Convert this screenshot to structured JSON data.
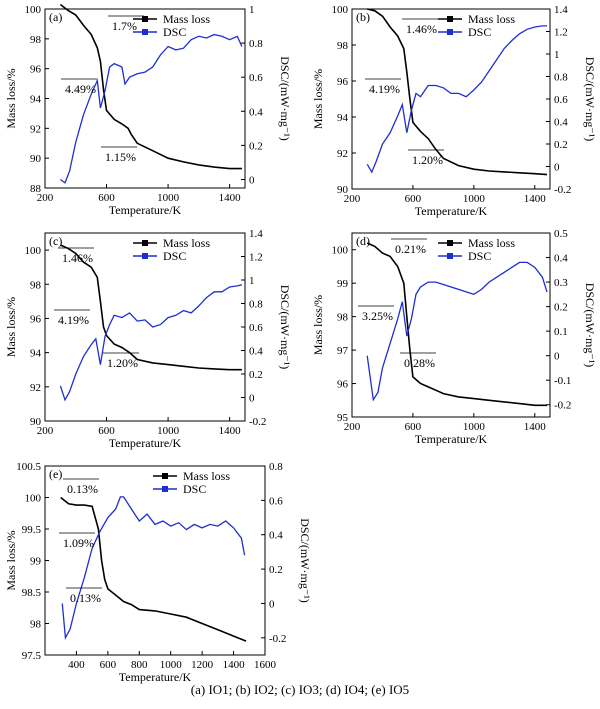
{
  "caption": "(a)  IO1;  (b)  IO2;  (c) IO3;  (d) IO4;  (e) IO5",
  "colors": {
    "mass": "#000000",
    "dsc": "#1f2fcf"
  },
  "chart_data": [
    {
      "panel": "(a)",
      "type": "line",
      "xlabel": "Temperature/K",
      "ylabel": "Mass loss/%",
      "y2label": "DSC/(mW·mg⁻¹)",
      "xlim": [
        200,
        1500
      ],
      "ylim": [
        88,
        100
      ],
      "y2lim": [
        -0.05,
        1.0
      ],
      "xticks": [
        200,
        600,
        1000,
        1400
      ],
      "yticks": [
        88,
        90,
        92,
        94,
        96,
        98,
        100
      ],
      "y2ticks": [
        0,
        0.2,
        0.4,
        0.6,
        0.8,
        1.0
      ],
      "legend": [
        "Mass loss",
        "DSC"
      ],
      "legend_position": "top-right",
      "annotations": [
        "1.7%",
        "4.49%",
        "1.15%"
      ],
      "series": [
        {
          "name": "Mass loss",
          "axis": "left",
          "x": [
            300,
            350,
            400,
            450,
            500,
            540,
            560,
            580,
            600,
            650,
            700,
            740,
            760,
            800,
            900,
            1000,
            1100,
            1200,
            1300,
            1400,
            1480
          ],
          "y": [
            100.3,
            99.9,
            99.6,
            98.9,
            98.3,
            97.4,
            96.5,
            94.6,
            93.2,
            92.6,
            92.3,
            92.0,
            91.6,
            91.0,
            90.5,
            90.0,
            89.75,
            89.55,
            89.4,
            89.3,
            89.3
          ]
        },
        {
          "name": "DSC",
          "axis": "right",
          "x": [
            300,
            330,
            360,
            400,
            450,
            500,
            540,
            560,
            590,
            620,
            650,
            700,
            720,
            750,
            800,
            850,
            900,
            950,
            1000,
            1050,
            1100,
            1150,
            1200,
            1250,
            1300,
            1350,
            1400,
            1450,
            1480
          ],
          "y": [
            0.0,
            -0.02,
            0.05,
            0.22,
            0.38,
            0.5,
            0.58,
            0.42,
            0.52,
            0.66,
            0.68,
            0.66,
            0.56,
            0.6,
            0.62,
            0.63,
            0.66,
            0.73,
            0.78,
            0.76,
            0.77,
            0.82,
            0.84,
            0.83,
            0.85,
            0.84,
            0.82,
            0.84,
            0.78
          ]
        }
      ]
    },
    {
      "panel": "(b)",
      "type": "line",
      "xlabel": "Temperature/K",
      "ylabel": "Mass loss/%",
      "y2label": "DSC/(mW·mg⁻¹)",
      "xlim": [
        200,
        1500
      ],
      "ylim": [
        90,
        100
      ],
      "y2lim": [
        -0.2,
        1.4
      ],
      "xticks": [
        200,
        600,
        1000,
        1400
      ],
      "yticks": [
        90,
        92,
        94,
        96,
        98,
        100
      ],
      "y2ticks": [
        -0.2,
        0,
        0.2,
        0.4,
        0.6,
        0.8,
        1.0,
        1.2,
        1.4
      ],
      "legend": [
        "Mass loss",
        "DSC"
      ],
      "legend_position": "top-right",
      "annotations": [
        "1.46%",
        "4.19%",
        "1.20%"
      ],
      "series": [
        {
          "name": "Mass loss",
          "axis": "left",
          "x": [
            300,
            350,
            400,
            450,
            500,
            540,
            560,
            580,
            600,
            650,
            700,
            750,
            800,
            900,
            1000,
            1100,
            1200,
            1300,
            1400,
            1480
          ],
          "y": [
            100.0,
            99.9,
            99.6,
            99.0,
            98.5,
            97.8,
            96.5,
            95.0,
            93.7,
            93.2,
            92.8,
            92.2,
            91.7,
            91.3,
            91.1,
            91.0,
            90.95,
            90.9,
            90.85,
            90.8
          ]
        },
        {
          "name": "DSC",
          "axis": "right",
          "x": [
            300,
            330,
            360,
            400,
            450,
            500,
            530,
            560,
            590,
            620,
            650,
            700,
            750,
            800,
            850,
            900,
            950,
            1000,
            1050,
            1100,
            1150,
            1200,
            1250,
            1300,
            1350,
            1400,
            1450,
            1480
          ],
          "y": [
            0.02,
            -0.05,
            0.05,
            0.2,
            0.3,
            0.45,
            0.55,
            0.3,
            0.5,
            0.65,
            0.62,
            0.72,
            0.72,
            0.7,
            0.65,
            0.65,
            0.62,
            0.68,
            0.75,
            0.85,
            0.95,
            1.05,
            1.12,
            1.18,
            1.22,
            1.24,
            1.25,
            1.25
          ]
        }
      ]
    },
    {
      "panel": "(c)",
      "type": "line",
      "xlabel": "Temperature/K",
      "ylabel": "Mass loss/%",
      "y2label": "DSC/(mW·mg⁻¹)",
      "xlim": [
        200,
        1500
      ],
      "ylim": [
        90,
        101
      ],
      "y2lim": [
        -0.2,
        1.4
      ],
      "xticks": [
        200,
        600,
        1000,
        1400
      ],
      "yticks": [
        90,
        92,
        94,
        96,
        98,
        100
      ],
      "y2ticks": [
        -0.2,
        0,
        0.2,
        0.4,
        0.6,
        0.8,
        1.0,
        1.2,
        1.4
      ],
      "legend": [
        "Mass loss",
        "DSC"
      ],
      "legend_position": "top-right",
      "annotations": [
        "1.46%",
        "4.19%",
        "1.20%"
      ],
      "series": [
        {
          "name": "Mass loss",
          "axis": "left",
          "x": [
            300,
            350,
            400,
            450,
            500,
            540,
            560,
            580,
            600,
            650,
            700,
            750,
            800,
            900,
            1000,
            1100,
            1200,
            1300,
            1400,
            1480
          ],
          "y": [
            100.3,
            100.1,
            99.8,
            99.3,
            99.0,
            98.4,
            97.0,
            95.5,
            95.0,
            94.5,
            94.3,
            94.0,
            93.6,
            93.4,
            93.3,
            93.2,
            93.1,
            93.05,
            93.0,
            93.0
          ]
        },
        {
          "name": "DSC",
          "axis": "right",
          "x": [
            300,
            330,
            360,
            400,
            450,
            500,
            530,
            560,
            590,
            620,
            650,
            700,
            750,
            800,
            850,
            900,
            950,
            1000,
            1050,
            1100,
            1150,
            1200,
            1250,
            1300,
            1350,
            1400,
            1450,
            1480
          ],
          "y": [
            0.1,
            -0.02,
            0.05,
            0.2,
            0.35,
            0.45,
            0.5,
            0.28,
            0.52,
            0.62,
            0.7,
            0.68,
            0.72,
            0.65,
            0.66,
            0.6,
            0.62,
            0.68,
            0.7,
            0.74,
            0.72,
            0.78,
            0.85,
            0.9,
            0.9,
            0.94,
            0.95,
            0.96
          ]
        }
      ]
    },
    {
      "panel": "(d)",
      "type": "line",
      "xlabel": "Temperature/K",
      "ylabel": "Mass loss/%",
      "y2label": "DSC/(mW·mg⁻¹)",
      "xlim": [
        200,
        1500
      ],
      "ylim": [
        95,
        100.5
      ],
      "y2lim": [
        -0.25,
        0.5
      ],
      "xticks": [
        200,
        600,
        1000,
        1400
      ],
      "yticks": [
        95,
        96,
        97,
        98,
        99,
        100
      ],
      "y2ticks": [
        -0.2,
        -0.1,
        0,
        0.1,
        0.2,
        0.3,
        0.4,
        0.5
      ],
      "legend": [
        "Mass loss",
        "DSC"
      ],
      "legend_position": "top-right",
      "annotations": [
        "0.21%",
        "3.25%",
        "0.28%"
      ],
      "series": [
        {
          "name": "Mass loss",
          "axis": "left",
          "x": [
            300,
            350,
            400,
            450,
            500,
            540,
            560,
            580,
            600,
            650,
            700,
            750,
            800,
            900,
            1000,
            1100,
            1200,
            1300,
            1400,
            1480
          ],
          "y": [
            100.2,
            100.1,
            99.9,
            99.8,
            99.5,
            99.0,
            98.0,
            97.0,
            96.2,
            96.0,
            95.9,
            95.8,
            95.7,
            95.6,
            95.55,
            95.5,
            95.45,
            95.4,
            95.35,
            95.35
          ]
        },
        {
          "name": "DSC",
          "axis": "right",
          "x": [
            300,
            340,
            370,
            400,
            450,
            500,
            530,
            560,
            590,
            620,
            650,
            700,
            750,
            800,
            850,
            900,
            950,
            1000,
            1050,
            1100,
            1150,
            1200,
            1250,
            1300,
            1350,
            1400,
            1450,
            1480
          ],
          "y": [
            0.0,
            -0.18,
            -0.15,
            -0.05,
            0.05,
            0.15,
            0.22,
            0.08,
            0.15,
            0.25,
            0.28,
            0.3,
            0.3,
            0.29,
            0.28,
            0.27,
            0.26,
            0.25,
            0.27,
            0.3,
            0.32,
            0.34,
            0.36,
            0.38,
            0.38,
            0.36,
            0.32,
            0.26
          ]
        }
      ]
    },
    {
      "panel": "(e)",
      "type": "line",
      "xlabel": "Temperature/K",
      "ylabel": "Mass loss/%",
      "y2label": "DSC/(mW·mg⁻¹)",
      "xlim": [
        200,
        1600
      ],
      "ylim": [
        97.5,
        100.5
      ],
      "y2lim": [
        -0.3,
        0.8
      ],
      "xticks": [
        400,
        600,
        800,
        1000,
        1200,
        1400,
        1600
      ],
      "yticks": [
        97.5,
        98.0,
        98.5,
        99.0,
        99.5,
        100.0,
        100.5
      ],
      "y2ticks": [
        -0.2,
        0,
        0.2,
        0.4,
        0.6,
        0.8
      ],
      "legend": [
        "Mass loss",
        "DSC"
      ],
      "legend_position": "top-right",
      "annotations": [
        "0.13%",
        "1.09%",
        "0.13%"
      ],
      "series": [
        {
          "name": "Mass loss",
          "axis": "left",
          "x": [
            300,
            350,
            400,
            450,
            500,
            540,
            560,
            580,
            600,
            650,
            700,
            750,
            800,
            900,
            1000,
            1100,
            1200,
            1300,
            1400,
            1480
          ],
          "y": [
            100.0,
            99.9,
            99.88,
            99.88,
            99.86,
            99.5,
            99.0,
            98.7,
            98.55,
            98.45,
            98.35,
            98.3,
            98.22,
            98.2,
            98.15,
            98.1,
            98.0,
            97.9,
            97.8,
            97.72
          ]
        },
        {
          "name": "DSC",
          "axis": "right",
          "x": [
            310,
            330,
            360,
            400,
            450,
            500,
            550,
            600,
            650,
            680,
            700,
            750,
            800,
            850,
            900,
            950,
            1000,
            1050,
            1100,
            1150,
            1200,
            1250,
            1300,
            1350,
            1400,
            1450,
            1470
          ],
          "y": [
            0.0,
            -0.2,
            -0.15,
            0.0,
            0.15,
            0.32,
            0.42,
            0.5,
            0.55,
            0.62,
            0.62,
            0.55,
            0.48,
            0.52,
            0.46,
            0.48,
            0.45,
            0.47,
            0.43,
            0.46,
            0.44,
            0.46,
            0.45,
            0.48,
            0.44,
            0.38,
            0.28
          ]
        }
      ]
    }
  ]
}
